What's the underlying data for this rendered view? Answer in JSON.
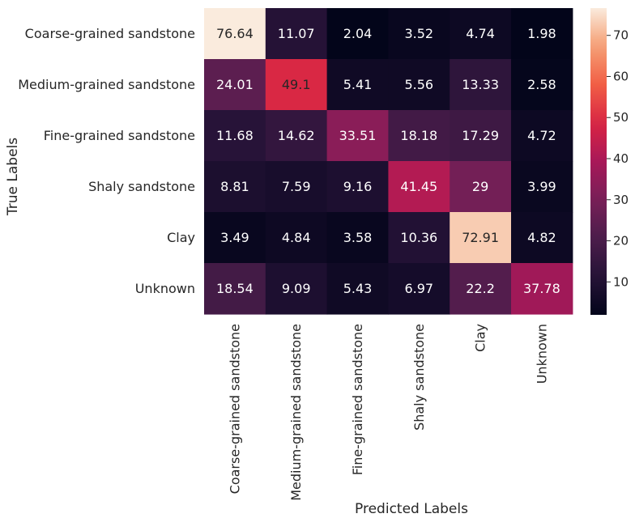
{
  "chart_data": {
    "type": "heatmap",
    "title": "",
    "xlabel": "Predicted Labels",
    "ylabel": "True Labels",
    "x_categories": [
      "Coarse-grained sandstone",
      "Medium-grained sandstone",
      "Fine-grained sandstone",
      "Shaly sandstone",
      "Clay",
      "Unknown"
    ],
    "y_categories": [
      "Coarse-grained sandstone",
      "Medium-grained sandstone",
      "Fine-grained sandstone",
      "Shaly sandstone",
      "Clay",
      "Unknown"
    ],
    "values": [
      [
        76.64,
        11.07,
        2.04,
        3.52,
        4.74,
        1.98
      ],
      [
        24.01,
        49.1,
        5.41,
        5.56,
        13.33,
        2.58
      ],
      [
        11.68,
        14.62,
        33.51,
        18.18,
        17.29,
        4.72
      ],
      [
        8.81,
        7.59,
        9.16,
        41.45,
        29,
        3.99
      ],
      [
        3.49,
        4.84,
        3.58,
        10.36,
        72.91,
        4.82
      ],
      [
        18.54,
        9.09,
        5.43,
        6.97,
        22.2,
        37.78
      ]
    ],
    "value_labels": [
      [
        "76.64",
        "11.07",
        "2.04",
        "3.52",
        "4.74",
        "1.98"
      ],
      [
        "24.01",
        "49.1",
        "5.41",
        "5.56",
        "13.33",
        "2.58"
      ],
      [
        "11.68",
        "14.62",
        "33.51",
        "18.18",
        "17.29",
        "4.72"
      ],
      [
        "8.81",
        "7.59",
        "9.16",
        "41.45",
        "29",
        "3.99"
      ],
      [
        "3.49",
        "4.84",
        "3.58",
        "10.36",
        "72.91",
        "4.82"
      ],
      [
        "18.54",
        "9.09",
        "5.43",
        "6.97",
        "22.2",
        "37.78"
      ]
    ],
    "colorbar": {
      "min": 1.98,
      "max": 76.64,
      "ticks": [
        10,
        20,
        30,
        40,
        50,
        60,
        70
      ],
      "colormap": "rocket"
    },
    "grid": false
  }
}
